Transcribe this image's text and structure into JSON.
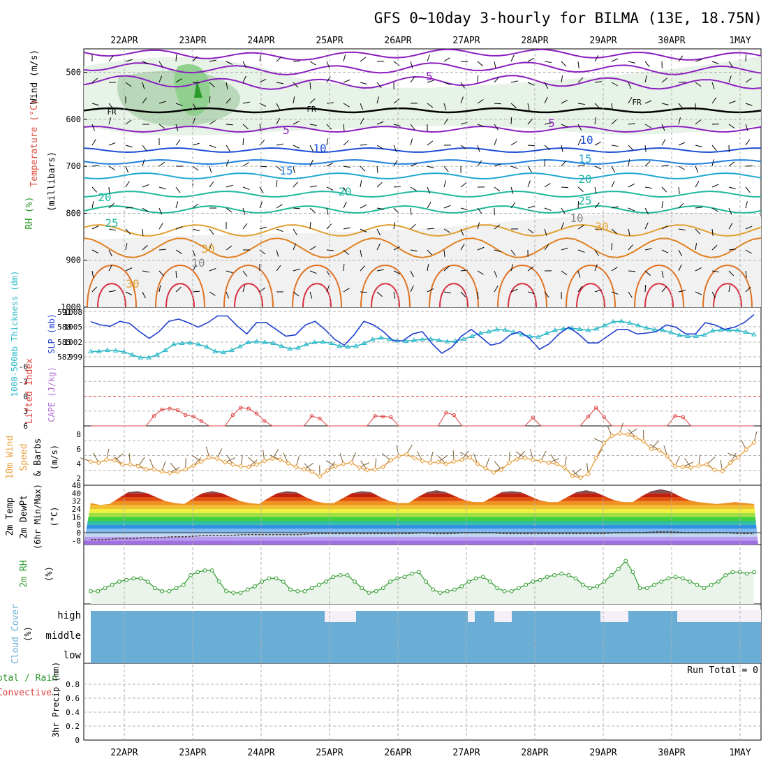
{
  "title": "GFS 0~10day 3-hourly for BILMA (13E, 18.75N)",
  "x_axis": {
    "tick_labels": [
      "22APR",
      "23APR",
      "24APR",
      "25APR",
      "26APR",
      "27APR",
      "28APR",
      "29APR",
      "30APR",
      "1MAY"
    ]
  },
  "colors": {
    "rh_green": "#8fd08f",
    "rh_dark": "#2a9a2a",
    "temp_purple": "#8b1fbf",
    "temp_blue": "#1f4fd6",
    "slp_blue": "#1f3fd0",
    "thickness_cyan": "#2ab8c8",
    "lifted_red": "#e04040",
    "wind_orange": "#e8a040",
    "cloud_blue": "#6aaed6",
    "rh_line": "#2e9b2e",
    "grid": "#b0b0b0"
  },
  "panels": {
    "upper_air": {
      "ylabel_parts": {
        "rh": "RH (%)",
        "temp": "Temperature (°C)",
        "wind": "Wind (m/s)",
        "p": "(millibars)"
      },
      "y_ticks": [
        "500",
        "600",
        "700",
        "800",
        "900",
        "1000"
      ],
      "fr_label": "FR",
      "contour_labels": [
        "-5",
        "5",
        "5",
        "10",
        "10",
        "15",
        "15",
        "20",
        "20",
        "20",
        "25",
        "25",
        "30",
        "30",
        "30",
        "10",
        "10"
      ]
    },
    "slp": {
      "ylabel_thickness": "1000-500mb Thickness (dm)",
      "ylabel_slp": "SLP (mb)",
      "left_ticks": [
        "591",
        "588",
        "585",
        "582"
      ],
      "right_ticks": [
        "1008",
        "1005",
        "1002",
        "999"
      ]
    },
    "lifted": {
      "ylabel_lifted": "Lifted Index",
      "ylabel_cape": "CAPE (J/kg)",
      "y_ticks": [
        "-6",
        "-3",
        "0",
        "3",
        "6"
      ]
    },
    "wind10": {
      "ylabel_wind": "10m Wind",
      "ylabel_speed": "Speed",
      "ylabel_barbs": "& Barbs",
      "unit": "(m/s)",
      "y_ticks": [
        "8",
        "6",
        "4",
        "2"
      ]
    },
    "temp2m": {
      "ylabel_a": "2m Temp",
      "ylabel_b": "2m DewPt",
      "ylabel_c": "(6hr Min/Max)",
      "unit": "(°C)",
      "y_ticks": [
        "48",
        "40",
        "32",
        "24",
        "16",
        "8",
        "0",
        "-8"
      ]
    },
    "rh2m": {
      "ylabel": "2m RH",
      "unit": "(%)"
    },
    "cloud": {
      "ylabel": "Cloud Cover",
      "unit": "(%)",
      "levels": [
        "high",
        "middle",
        "low"
      ]
    },
    "precip": {
      "ylabel_a": "Total / Rain",
      "ylabel_b": "Convective",
      "ylabel_c": "3hr Precip (mm)",
      "y_ticks": [
        "0.8",
        "0.6",
        "0.4",
        "0.2",
        "0"
      ],
      "run_total": "Run Total = 0"
    }
  },
  "chart_data": [
    {
      "type": "line",
      "name": "SLP (mb)",
      "x_unit": "3-hourly steps from 21APR 12Z",
      "values": [
        1006.7,
        1006.0,
        1005.7,
        1006.8,
        1006.3,
        1004.5,
        1003.0,
        1004.5,
        1006.8,
        1007.3,
        1006.5,
        1005.5,
        1006.5,
        1008.0,
        1008.0,
        1005.8,
        1004.0,
        1006.5,
        1006.5,
        1005.0,
        1003.5,
        1003.8,
        1006.0,
        1006.8,
        1005.0,
        1002.8,
        1001.5,
        1003.8,
        1006.8,
        1006.0,
        1004.5,
        1002.5,
        1002.5,
        1004.0,
        1004.5,
        1001.8,
        999.7,
        1001.0,
        1003.5,
        1005.0,
        1003.3,
        1001.5,
        1002.0,
        1003.8,
        1004.5,
        1003.0,
        1000.6,
        1001.8,
        1004.0,
        1005.5,
        1004.0,
        1002.0,
        1002.0,
        1003.5,
        1005.0,
        1005.0,
        1004.0,
        1004.2,
        1004.5,
        1006.0,
        1005.5,
        1004.0,
        1004.0,
        1006.5,
        1006.0,
        1005.0,
        1005.5,
        1006.5,
        1008.3
      ],
      "ylim": [
        998,
        1009
      ]
    },
    {
      "type": "line",
      "name": "1000-500mb Thickness (dm)",
      "values": [
        582.3,
        582.3,
        582.6,
        582.5,
        582.2,
        581.5,
        580.8,
        580.8,
        581.5,
        582.6,
        584.0,
        584.3,
        584.4,
        584.0,
        583.4,
        582.3,
        582.1,
        582.6,
        583.5,
        584.5,
        584.7,
        584.5,
        584.3,
        583.6,
        582.9,
        583.2,
        584.0,
        584.5,
        584.6,
        584.3,
        583.6,
        583.4,
        583.6,
        584.3,
        585.2,
        585.6,
        585.3,
        584.9,
        584.8,
        585.0,
        585.2,
        585.3,
        585.0,
        584.7,
        584.8,
        585.3,
        586.0,
        586.7,
        587.1,
        587.6,
        587.5,
        587.0,
        586.4,
        586.0,
        585.8,
        586.7,
        587.4,
        587.8,
        587.9,
        587.7,
        587.4,
        587.8,
        588.6,
        589.5,
        589.6,
        589.2,
        588.6,
        588.0,
        587.6,
        587.4,
        586.9,
        586.2,
        586.0,
        586.0,
        586.3,
        587.3,
        587.5,
        587.4,
        587.4,
        587.0,
        586.4
      ],
      "ylim": [
        580,
        592
      ]
    },
    {
      "type": "line",
      "name": "Lifted Index",
      "values": [
        6,
        6,
        6,
        6,
        6,
        6,
        6,
        6,
        4,
        2.7,
        2.5,
        2.8,
        3.8,
        4.1,
        5,
        6,
        6,
        6,
        3.8,
        2.3,
        2.5,
        3.5,
        5,
        6,
        6,
        6,
        6,
        6,
        4,
        4.5,
        6,
        6,
        6,
        6,
        6,
        6,
        4,
        4.1,
        4.2,
        6,
        6,
        6,
        6,
        6,
        6,
        3.3,
        3.8,
        6,
        6,
        6,
        6,
        6,
        6,
        6,
        6,
        6,
        4.3,
        6,
        6,
        6,
        6,
        6,
        6,
        4.1,
        2.3,
        4.2,
        6,
        6,
        6,
        6,
        6,
        6,
        6,
        6,
        4,
        4.2,
        6,
        6,
        6,
        6,
        6,
        6,
        6,
        6,
        6
      ],
      "ylim": [
        -6,
        6
      ]
    },
    {
      "type": "line",
      "name": "10m Wind Speed (m/s)",
      "values": [
        3.5,
        3.3,
        3.8,
        3.7,
        3.0,
        3.0,
        2.7,
        2.2,
        2.2,
        1.8,
        1.6,
        1.8,
        2.2,
        2.8,
        3.5,
        4.2,
        4.0,
        3.4,
        3.0,
        2.7,
        2.6,
        3.0,
        3.6,
        4.0,
        3.8,
        3.2,
        2.6,
        2.2,
        1.8,
        1.0,
        2.0,
        2.7,
        3.1,
        3.3,
        2.5,
        2.1,
        2.2,
        2.6,
        3.7,
        4.4,
        4.7,
        4.1,
        3.6,
        3.3,
        3.4,
        3.1,
        3.5,
        3.8,
        4.2,
        3.1,
        2.4,
        1.7,
        2.1,
        3.3,
        3.9,
        4.1,
        3.8,
        3.6,
        3.3,
        3.1,
        2.5,
        1.1,
        0.8,
        1.4,
        4.1,
        6.6,
        7.8,
        8.2,
        8.0,
        7.5,
        6.9,
        5.6,
        5.4,
        4.4,
        2.7,
        2.6,
        2.5,
        2.8,
        3.0,
        2.1,
        1.9,
        3.3,
        4.2,
        5.5,
        6.7
      ],
      "ylim": [
        0,
        9
      ]
    },
    {
      "type": "area",
      "name": "2m Temp (°C)",
      "values": [
        30,
        28,
        29,
        35,
        41,
        42,
        40,
        36,
        32,
        30,
        29,
        35,
        40,
        42,
        40,
        36,
        32,
        30,
        29,
        35,
        40,
        42,
        41,
        36,
        32,
        30,
        30,
        35,
        40,
        42,
        41,
        36,
        32,
        30,
        30,
        36,
        41,
        43,
        41,
        37,
        33,
        31,
        31,
        36,
        41,
        42,
        41,
        37,
        33,
        31,
        31,
        36,
        41,
        43,
        41,
        37,
        33,
        31,
        31,
        37,
        42,
        44,
        42,
        37,
        33,
        31,
        30,
        29,
        30,
        31,
        30,
        29
      ],
      "ylim": [
        -12,
        48
      ]
    },
    {
      "type": "line",
      "name": "2m DewPt (°C)",
      "values": [
        -7,
        -7,
        -6,
        -6,
        -5,
        -5,
        -4,
        -4,
        -3,
        -3,
        -3,
        -2,
        -2,
        -2,
        -2,
        -2,
        -1,
        -1,
        -1,
        -1,
        -1,
        -1,
        -1,
        -1,
        0,
        -1,
        -1,
        0,
        0,
        0,
        -1,
        -1,
        -1,
        -1,
        -1,
        -1,
        -1,
        -1,
        0,
        0,
        0,
        1,
        1,
        0,
        0,
        0,
        0,
        -1,
        -1
      ],
      "ylim": [
        -12,
        48
      ]
    },
    {
      "type": "line",
      "name": "2m RH (%)",
      "values": [
        8,
        8,
        10,
        12,
        14,
        15,
        16,
        16,
        14,
        10,
        8,
        8,
        10,
        12,
        18,
        20,
        21,
        21,
        14,
        8,
        7,
        7,
        9,
        11,
        14,
        16,
        16,
        14,
        9,
        8,
        8,
        10,
        12,
        14,
        17,
        18,
        18,
        14,
        10,
        7,
        8,
        10,
        14,
        16,
        17,
        19,
        20,
        14,
        9,
        7,
        8,
        9,
        11,
        14,
        16,
        17,
        14,
        10,
        8,
        8,
        10,
        12,
        14,
        15,
        17,
        18,
        19,
        18,
        16,
        12,
        10,
        11,
        14,
        18,
        22,
        27,
        20,
        10,
        10,
        12,
        14,
        16,
        17,
        16,
        14,
        12,
        10,
        12,
        14,
        18,
        20,
        20,
        19,
        20
      ],
      "ylim": [
        0,
        35
      ]
    },
    {
      "type": "bar",
      "name": "3hr Precip (mm)",
      "values": [
        0
      ],
      "ylim": [
        0,
        1
      ]
    }
  ]
}
